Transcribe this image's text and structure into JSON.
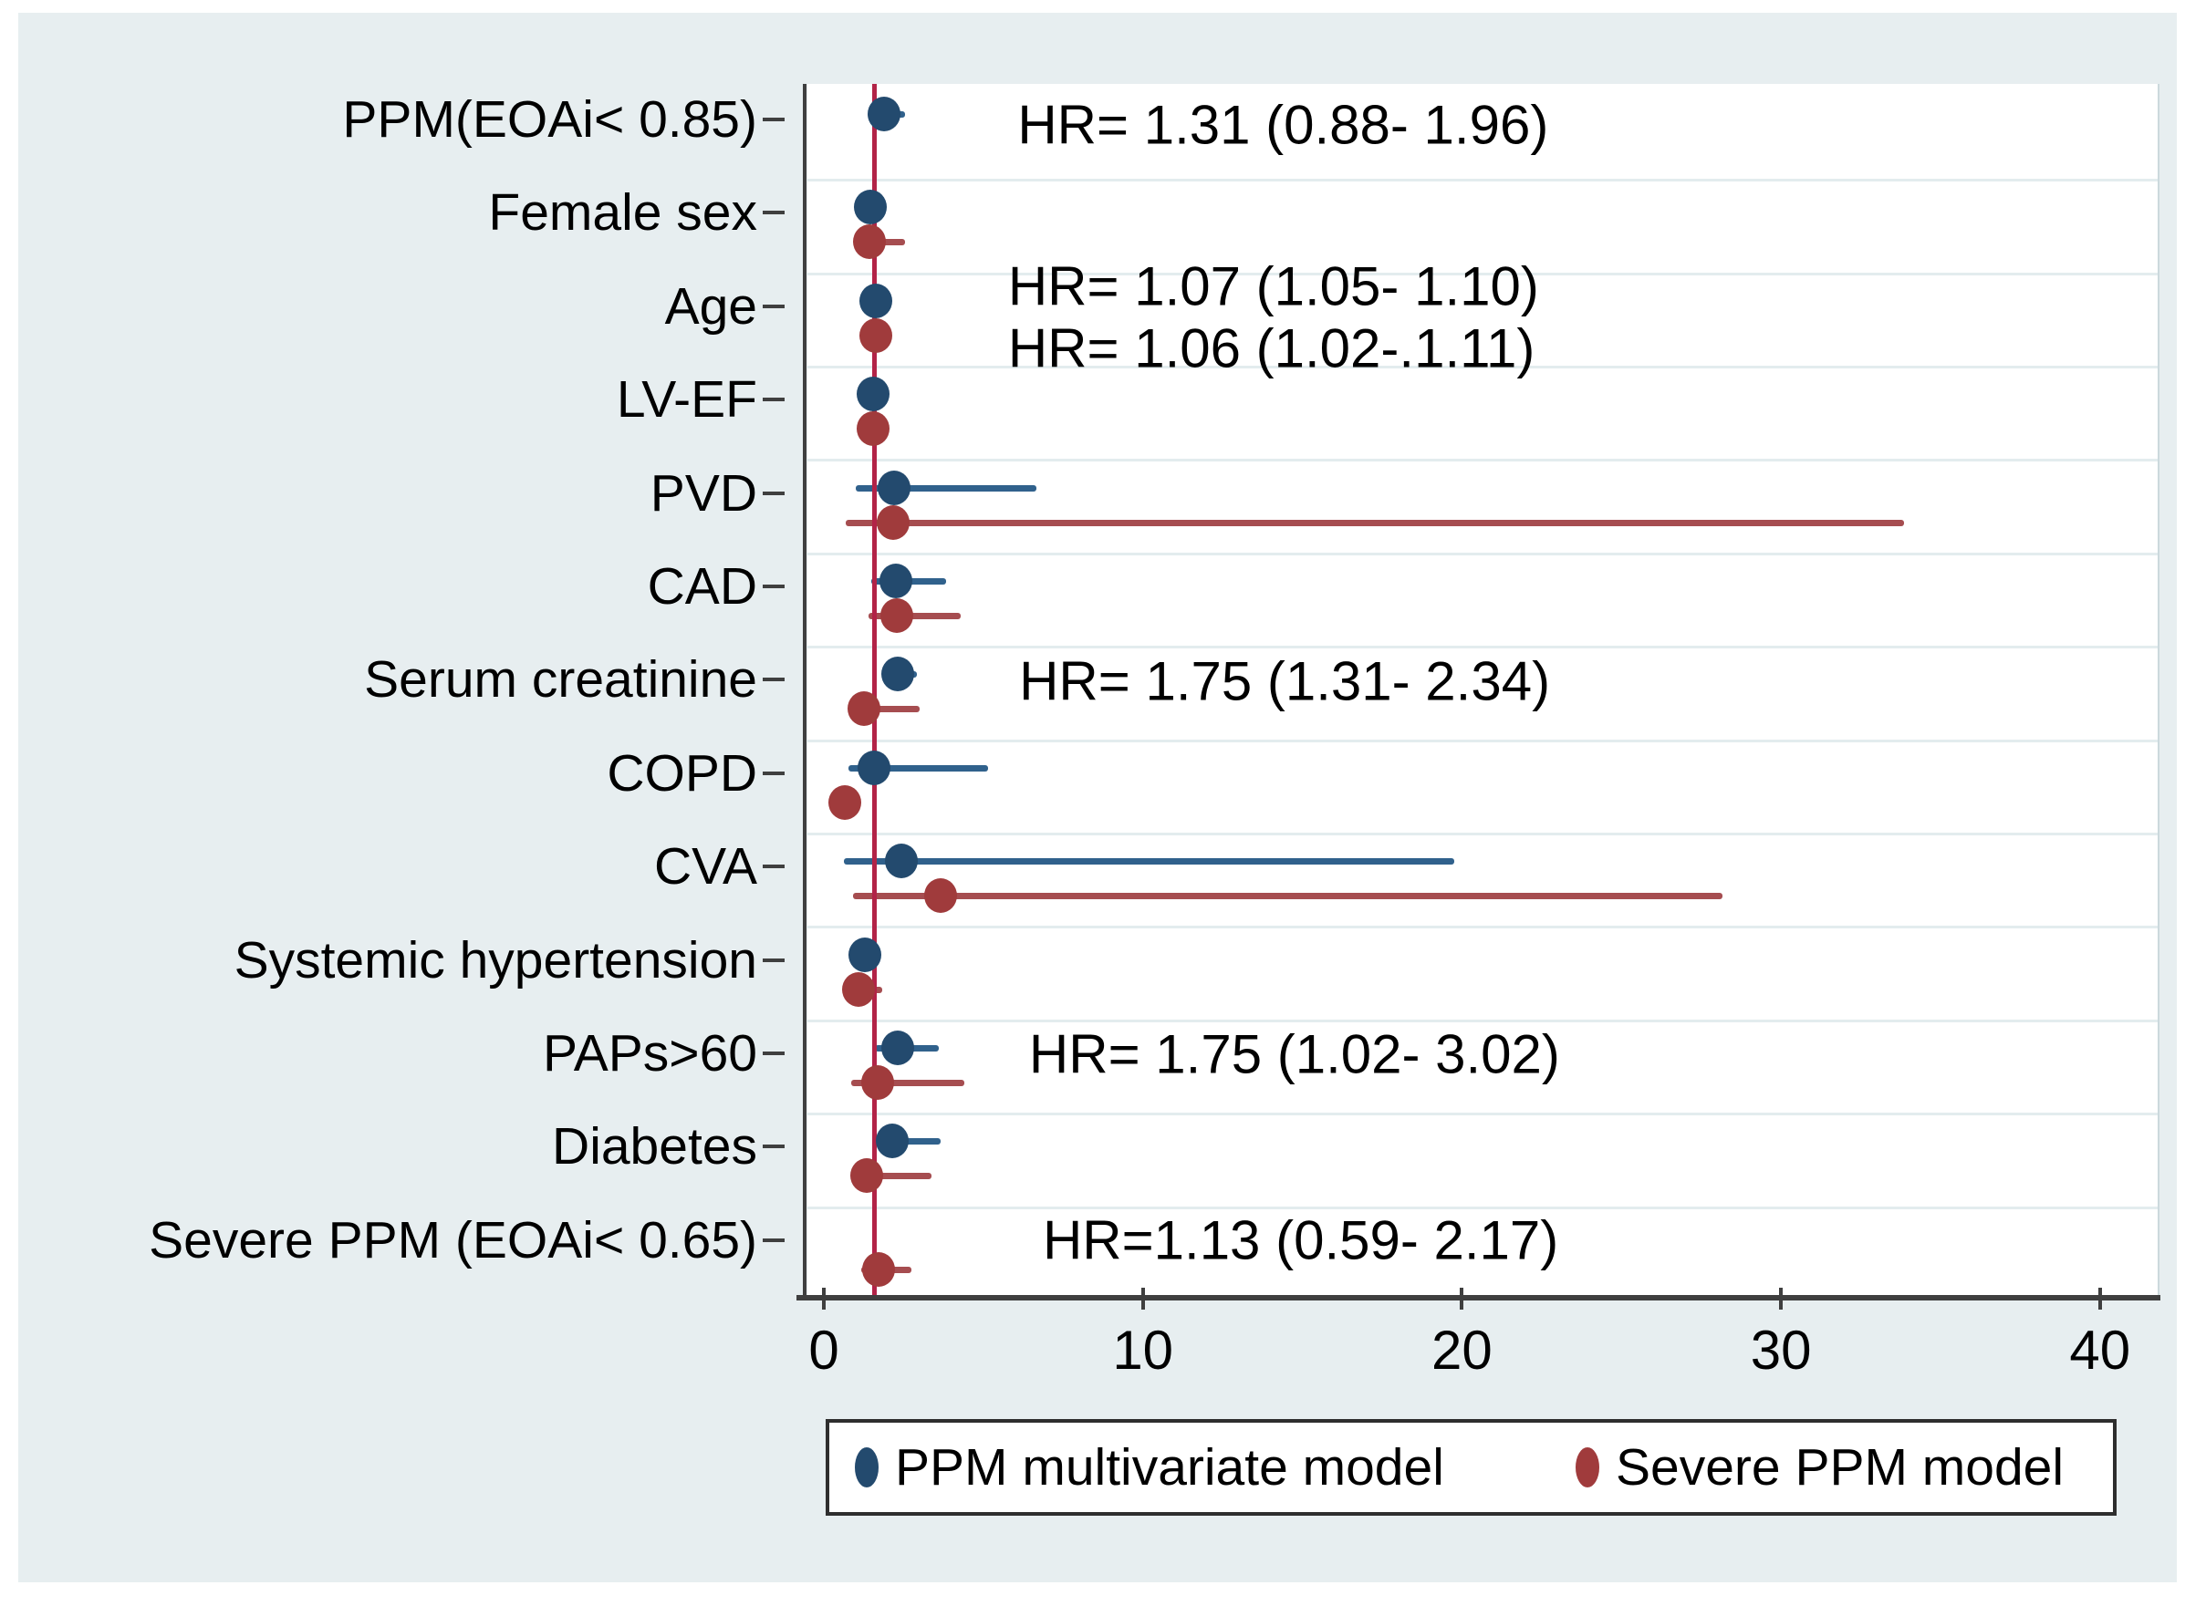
{
  "page": {
    "background": "#ffffff",
    "panel_color": "#e7eef0"
  },
  "chart_data": {
    "type": "scatter",
    "subtype": "forest-plot",
    "title": "",
    "xlabel": "",
    "ylabel": "",
    "grid": true,
    "x_axis": {
      "ticks": [
        0,
        10,
        20,
        30,
        40
      ],
      "lim": [
        -1.1,
        41.2
      ]
    },
    "reference_line": {
      "x": 1,
      "color": "#b22347"
    },
    "series": [
      {
        "id": "ppm",
        "name": "PPM multivariate model",
        "marker_color": "#234a6e",
        "line_color": "#30618c"
      },
      {
        "id": "severe",
        "name": "Severe PPM model",
        "marker_color": "#a03b3c",
        "line_color": "#a64d50"
      }
    ],
    "rows": [
      {
        "label": "PPM(EOAi< 0.85)",
        "ppm": {
          "hr": 1.31,
          "lo": 0.88,
          "hi": 1.96
        },
        "severe": null
      },
      {
        "label": "Female sex",
        "ppm": {
          "hr": 0.89,
          "lo": null,
          "hi": null
        },
        "severe": {
          "hr": 0.86,
          "lo": 0.5,
          "hi": 1.97
        }
      },
      {
        "label": "Age",
        "ppm": {
          "hr": 1.07,
          "lo": 1.05,
          "hi": 1.1
        },
        "severe": {
          "hr": 1.06,
          "lo": 1.02,
          "hi": 1.11
        }
      },
      {
        "label": "LV-EF",
        "ppm": {
          "hr": 0.97,
          "lo": null,
          "hi": null
        },
        "severe": {
          "hr": 0.98,
          "lo": null,
          "hi": null
        }
      },
      {
        "label": "PVD",
        "ppm": {
          "hr": 1.63,
          "lo": 0.43,
          "hi": 6.1
        },
        "severe": {
          "hr": 1.6,
          "lo": 0.12,
          "hi": 33.3
        }
      },
      {
        "label": "CAD",
        "ppm": {
          "hr": 1.69,
          "lo": 0.91,
          "hi": 3.26
        },
        "severe": {
          "hr": 1.71,
          "lo": 0.83,
          "hi": 3.71
        }
      },
      {
        "label": "Serum creatinine",
        "ppm": {
          "hr": 1.75,
          "lo": 1.31,
          "hi": 2.34
        },
        "severe": {
          "hr": 0.69,
          "lo": 0.2,
          "hi": 2.43
        }
      },
      {
        "label": "COPD",
        "ppm": {
          "hr": 1.0,
          "lo": 0.2,
          "hi": 4.57
        },
        "severe": {
          "hr": 0.08,
          "lo": null,
          "hi": null
        }
      },
      {
        "label": "CVA",
        "ppm": {
          "hr": 1.86,
          "lo": 0.06,
          "hi": 19.2
        },
        "severe": {
          "hr": 3.09,
          "lo": 0.34,
          "hi": 27.6
        }
      },
      {
        "label": "Systemic hypertension",
        "ppm": {
          "hr": 0.71,
          "lo": null,
          "hi": null
        },
        "severe": {
          "hr": 0.51,
          "lo": 0.2,
          "hi": 1.25
        }
      },
      {
        "label": "PAPs>60",
        "ppm": {
          "hr": 1.75,
          "lo": 1.02,
          "hi": 3.02
        },
        "severe": {
          "hr": 1.11,
          "lo": 0.3,
          "hi": 3.83
        }
      },
      {
        "label": "Diabetes",
        "ppm": {
          "hr": 1.57,
          "lo": 0.94,
          "hi": 3.09
        },
        "severe": {
          "hr": 0.77,
          "lo": 0.3,
          "hi": 2.8
        }
      },
      {
        "label": "Severe PPM (EOAi< 0.65)",
        "ppm": null,
        "severe": {
          "hr": 1.13,
          "lo": 0.59,
          "hi": 2.17
        }
      }
    ],
    "annotations": [
      {
        "text": "HR= 1.31 (0.88- 1.96)",
        "x_hr": 5.5,
        "row": 0,
        "row_offset": -0.08
      },
      {
        "text": "HR= 1.07 (1.05- 1.10)",
        "x_hr": 5.2,
        "row": 2,
        "row_offset": -0.35
      },
      {
        "text": "HR= 1.06 (1.02-.1.11)",
        "x_hr": 5.2,
        "row": 2,
        "row_offset": 0.31
      },
      {
        "text": "HR= 1.75 (1.31- 2.34)",
        "x_hr": 5.55,
        "row": 6,
        "row_offset": -0.12
      },
      {
        "text": "HR= 1.75 (1.02- 3.02)",
        "x_hr": 5.86,
        "row": 10,
        "row_offset": -0.13
      },
      {
        "text": "HR=1.13 (0.59- 2.17)",
        "x_hr": 6.29,
        "row": 12,
        "row_offset": -0.13
      }
    ],
    "legend": {
      "position": "bottom",
      "items": [
        "PPM multivariate model",
        "Severe PPM model"
      ]
    }
  }
}
